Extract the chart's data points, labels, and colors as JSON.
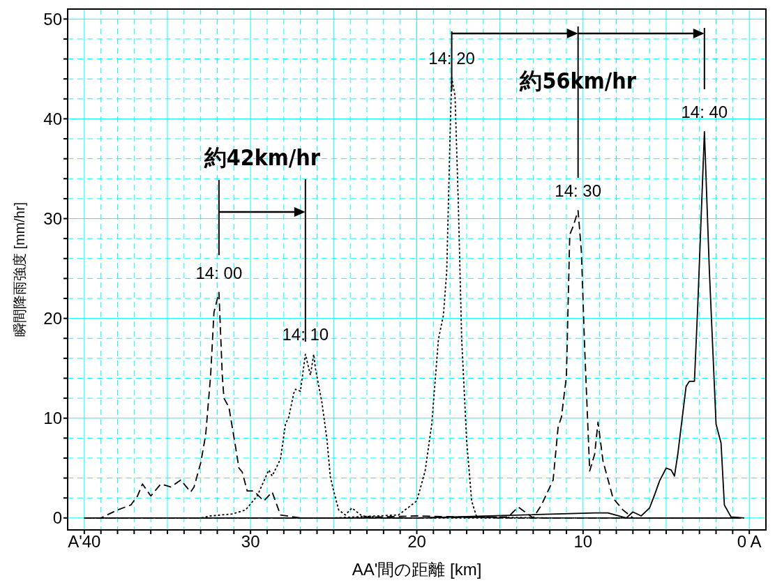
{
  "chart_data": {
    "type": "line",
    "xlabel": "AA'間の距離 [km]",
    "ylabel": "瞬間降雨強度 [mm/hr]",
    "xlim": [
      41,
      -1
    ],
    "ylim": [
      -1.2,
      51
    ],
    "xticks": [
      {
        "value": 40,
        "label": "A'40"
      },
      {
        "value": 39,
        "label": null
      },
      {
        "value": 38,
        "label": null
      },
      {
        "value": 37,
        "label": null
      },
      {
        "value": 36,
        "label": null
      },
      {
        "value": 35,
        "label": null
      },
      {
        "value": 34,
        "label": null
      },
      {
        "value": 33,
        "label": null
      },
      {
        "value": 32,
        "label": null
      },
      {
        "value": 31,
        "label": null
      },
      30,
      {
        "value": 29,
        "label": null
      },
      {
        "value": 28,
        "label": null
      },
      {
        "value": 27,
        "label": null
      },
      {
        "value": 26,
        "label": null
      },
      {
        "value": 25,
        "label": null
      },
      {
        "value": 24,
        "label": null
      },
      {
        "value": 23,
        "label": null
      },
      {
        "value": 22,
        "label": null
      },
      {
        "value": 21,
        "label": null
      },
      20,
      {
        "value": 19,
        "label": null
      },
      {
        "value": 18,
        "label": null
      },
      {
        "value": 17,
        "label": null
      },
      {
        "value": 16,
        "label": null
      },
      {
        "value": 15,
        "label": null
      },
      {
        "value": 14,
        "label": null
      },
      {
        "value": 13,
        "label": null
      },
      {
        "value": 12,
        "label": null
      },
      {
        "value": 11,
        "label": null
      },
      10,
      {
        "value": 9,
        "label": null
      },
      {
        "value": 8,
        "label": null
      },
      {
        "value": 7,
        "label": null
      },
      {
        "value": 6,
        "label": null
      },
      {
        "value": 5,
        "label": null
      },
      {
        "value": 4,
        "label": null
      },
      {
        "value": 3,
        "label": null
      },
      {
        "value": 2,
        "label": null
      },
      {
        "value": 1,
        "label": null
      },
      {
        "value": 0,
        "label": "0 A"
      }
    ],
    "yticks": [
      0,
      {
        "value": 2,
        "label": null
      },
      {
        "value": 4,
        "label": null
      },
      {
        "value": 6,
        "label": null
      },
      {
        "value": 8,
        "label": null
      },
      10,
      {
        "value": 12,
        "label": null
      },
      {
        "value": 14,
        "label": null
      },
      {
        "value": 16,
        "label": null
      },
      {
        "value": 18,
        "label": null
      },
      20,
      {
        "value": 22,
        "label": null
      },
      {
        "value": 24,
        "label": null
      },
      {
        "value": 26,
        "label": null
      },
      {
        "value": 28,
        "label": null
      },
      30,
      {
        "value": 32,
        "label": null
      },
      {
        "value": 34,
        "label": null
      },
      {
        "value": 36,
        "label": null
      },
      {
        "value": 38,
        "label": null
      },
      40,
      {
        "value": 42,
        "label": null
      },
      {
        "value": 44,
        "label": null
      },
      {
        "value": 46,
        "label": null
      },
      {
        "value": 48,
        "label": null
      },
      50
    ],
    "grid": true,
    "series": [
      {
        "color": "#000000",
        "line_style": "dashed",
        "x": [
          40,
          39,
          38,
          37.2,
          36.8,
          36.5,
          36,
          35.4,
          34.8,
          34.2,
          33.6,
          33.4,
          33,
          32.7,
          32.4,
          32.2,
          31.9,
          31.7,
          31.6,
          31.3,
          30.9,
          30.7,
          30.5,
          30.2,
          29.8,
          29.2,
          28.7,
          28.2,
          27,
          24,
          20,
          15,
          10,
          5,
          0.5
        ],
        "values": [
          0,
          0,
          0.8,
          1.3,
          2.2,
          3.4,
          2.2,
          3.4,
          3.1,
          3.8,
          2.6,
          3.1,
          5.5,
          8.3,
          14.3,
          20.6,
          22.6,
          14.3,
          12,
          11.1,
          7.1,
          5,
          4.6,
          2.7,
          2.7,
          1.7,
          2.6,
          0.3,
          0,
          0,
          0.2,
          0,
          0,
          0,
          0
        ]
      },
      {
        "color": "#000000",
        "line_style": "dotted",
        "x": [
          40,
          33,
          32.4,
          31.1,
          30.3,
          29.6,
          28.9,
          28.7,
          28.2,
          27.9,
          27.7,
          27.4,
          27.3,
          27,
          26.7,
          26.4,
          26.2,
          26.1,
          25.7,
          25.4,
          25.2,
          25,
          24.7,
          24.3,
          23.9,
          23.3,
          22,
          15,
          8,
          0.5
        ],
        "values": [
          0,
          0,
          0.2,
          0.4,
          0.8,
          2.2,
          4.8,
          4.2,
          5.9,
          9.4,
          10.1,
          12.5,
          12.9,
          12.7,
          16.4,
          14.3,
          16.4,
          15,
          11.5,
          7.8,
          4.1,
          2.7,
          0.8,
          0.3,
          1,
          0.2,
          0,
          0,
          0,
          0
        ]
      },
      {
        "color": "#000000",
        "line_style": "dotted",
        "x": [
          40,
          25,
          21.1,
          20,
          19.5,
          19.1,
          18.7,
          18.4,
          18.2,
          18,
          17.9,
          17.7,
          17.5,
          17.3,
          17,
          16.7,
          16.4,
          12,
          5,
          0.5
        ],
        "values": [
          0,
          0,
          0.3,
          1.7,
          4.7,
          9.4,
          17.9,
          20.3,
          24.7,
          38.2,
          44.1,
          42.3,
          31.4,
          17.9,
          7.7,
          1.7,
          0.1,
          0,
          0,
          0
        ]
      },
      {
        "color": "#000000",
        "line_style": "dashed",
        "x": [
          40,
          20,
          14.5,
          13.9,
          13,
          12.5,
          11.8,
          11.5,
          11.3,
          11,
          10.8,
          10.6,
          10.3,
          10.1,
          9.9,
          9.6,
          9.3,
          9.1,
          8.8,
          8.2,
          7.6,
          7,
          3,
          0.5
        ],
        "values": [
          0,
          0,
          0.1,
          1.1,
          0,
          1.3,
          3.8,
          9.1,
          10.1,
          14.2,
          28.4,
          29.2,
          30.8,
          26.7,
          16.9,
          4.7,
          6.4,
          9.6,
          5.7,
          2,
          0.8,
          0,
          0,
          0
        ]
      },
      {
        "color": "#000000",
        "line_style": "solid",
        "x": [
          40,
          20,
          9.3,
          8.5,
          7.4,
          7,
          6.5,
          6,
          5.7,
          5.4,
          5,
          4.7,
          4.5,
          4.3,
          4,
          3.8,
          3.6,
          3.3,
          3.1,
          2.7,
          2.4,
          2,
          1.7,
          1.5,
          1.1,
          0.3
        ],
        "values": [
          0,
          0,
          0.5,
          0.5,
          0,
          0.6,
          0.2,
          1,
          2.3,
          3.7,
          5,
          4.8,
          4.2,
          6.4,
          10.5,
          13.2,
          13.7,
          13.7,
          21.3,
          38.7,
          24.7,
          9.4,
          7.5,
          1.3,
          0.1,
          0
        ]
      }
    ],
    "annotations": [
      "14: 00",
      "14: 10",
      "14: 20",
      "14: 30",
      "14: 40",
      "約42km/hr",
      "約56km/hr"
    ]
  }
}
